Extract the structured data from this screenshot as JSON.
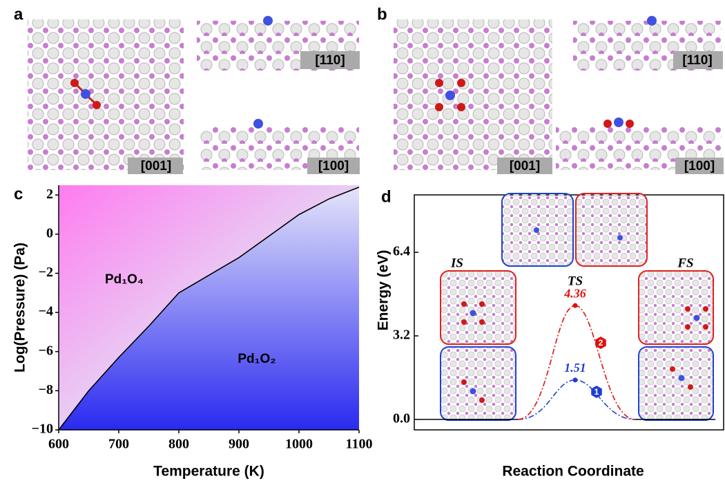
{
  "panel_a": {
    "label": "a",
    "views": [
      "[001]",
      "[110]",
      "[100]"
    ]
  },
  "panel_b": {
    "label": "b",
    "views": [
      "[001]",
      "[110]",
      "[100]"
    ]
  },
  "chart_data": [
    {
      "type": "area",
      "label": "c",
      "xlabel": "Temperature (K)",
      "ylabel": "Log(Pressure) (Pa)",
      "x": [
        600,
        650,
        700,
        750,
        800,
        900,
        1000,
        1050,
        1100
      ],
      "series": [
        {
          "color": "#000000",
          "values": [
            -10,
            -8,
            -6.3,
            -4.7,
            -3,
            -1.2,
            1,
            1.8,
            2.4
          ]
        }
      ],
      "annotations": [
        "Pd₁O₄",
        "Pd₁O₂"
      ],
      "xlim": [
        600,
        1100
      ],
      "xticks": [
        600,
        700,
        800,
        900,
        1000,
        1100
      ],
      "ylim": [
        -10,
        2.5
      ],
      "yticks": [
        {
          "value": -10,
          "label": "−10"
        },
        {
          "value": -8,
          "label": "−8"
        },
        {
          "value": -6,
          "label": "−6"
        },
        {
          "value": -4,
          "label": "−4"
        },
        {
          "value": -2,
          "label": "−2"
        },
        0,
        2
      ]
    },
    {
      "type": "line",
      "label": "d",
      "xlabel": "Reaction Coordinate",
      "ylabel": "Energy (eV)",
      "categories": [
        "IS",
        "TS",
        "FS"
      ],
      "series": [
        {
          "name": "1",
          "color": "#1f3fd0",
          "values": [
            0,
            1.51,
            0
          ],
          "value_labels": [
            null,
            "1.51",
            null
          ]
        },
        {
          "name": "2",
          "color": "#e01010",
          "values": [
            0,
            4.36,
            0
          ],
          "value_labels": [
            null,
            "4.36",
            null
          ]
        }
      ],
      "ylim": [
        -0.4,
        8.6
      ],
      "yticks": [
        {
          "value": 0,
          "label": "0.0"
        },
        3.2,
        6.4
      ]
    }
  ]
}
